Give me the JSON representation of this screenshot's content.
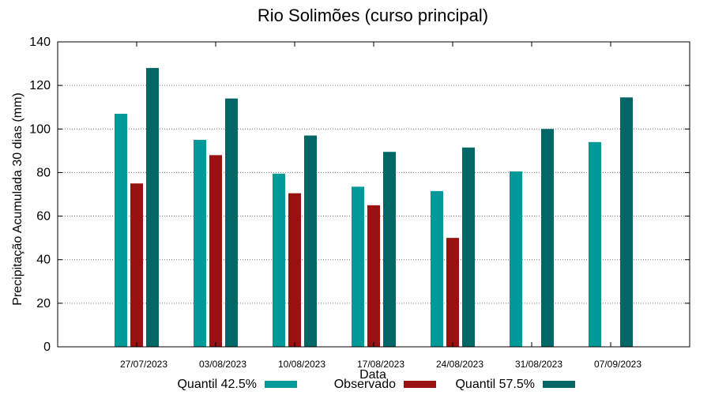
{
  "chart_data": {
    "type": "bar",
    "title": "Rio Solimões (curso principal)",
    "xlabel": "Data",
    "ylabel": "Precipitação Acumulada 30 dias (mm)",
    "ylim": [
      0,
      140
    ],
    "yticks": [
      0,
      20,
      40,
      60,
      80,
      100,
      120,
      140
    ],
    "grid": true,
    "legend_position": "bottom",
    "categories": [
      "27/07/2023",
      "03/08/2023",
      "10/08/2023",
      "17/08/2023",
      "24/08/2023",
      "31/08/2023",
      "07/09/2023"
    ],
    "series": [
      {
        "name": "Quantil 42.5%",
        "color": "#009999",
        "values": [
          107,
          95,
          79.5,
          73.5,
          71.5,
          80.5,
          94
        ]
      },
      {
        "name": "Observado",
        "color": "#991111",
        "values": [
          75,
          88,
          70.5,
          65,
          50,
          null,
          null
        ]
      },
      {
        "name": "Quantil 57.5%",
        "color": "#006666",
        "values": [
          128,
          114,
          97,
          89.5,
          91.5,
          100,
          114.5
        ]
      }
    ]
  }
}
